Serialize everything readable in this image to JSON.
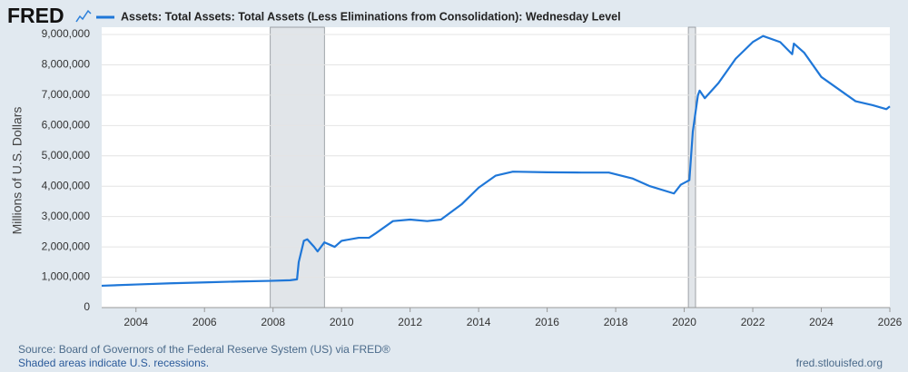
{
  "logo": "FRED",
  "chart_data": {
    "type": "line",
    "title": "Assets: Total Assets: Total Assets (Less Eliminations from Consolidation): Wednesday Level",
    "y_label": "Millions of U.S. Dollars",
    "source": "Source: Board of Governors of the Federal Reserve System (US) via FRED®",
    "note": "Shaded areas indicate U.S. recessions.",
    "url": "fred.stlouisfed.org",
    "grid": true,
    "recessions": [
      [
        2007.92,
        2009.5
      ],
      [
        2020.12,
        2020.33
      ]
    ],
    "xlim": [
      2003,
      2026
    ],
    "xticks": [
      2004,
      2006,
      2008,
      2010,
      2012,
      2014,
      2016,
      2018,
      2020,
      2022,
      2024,
      2026
    ],
    "ylim": [
      0,
      9000000
    ],
    "yticks": [
      0,
      {
        "value": 1000000,
        "label": "1,000,000"
      },
      {
        "value": 2000000,
        "label": "2,000,000"
      },
      {
        "value": 3000000,
        "label": "3,000,000"
      },
      {
        "value": 4000000,
        "label": "4,000,000"
      },
      {
        "value": 5000000,
        "label": "5,000,000"
      },
      {
        "value": 6000000,
        "label": "6,000,000"
      },
      {
        "value": 7000000,
        "label": "7,000,000"
      },
      {
        "value": 8000000,
        "label": "8,000,000"
      },
      {
        "value": 9000000,
        "label": "9,000,000"
      }
    ],
    "x": [
      2003.0,
      2004.0,
      2005.0,
      2006.0,
      2007.0,
      2007.9,
      2008.5,
      2008.7,
      2008.75,
      2008.9,
      2009.0,
      2009.2,
      2009.3,
      2009.5,
      2009.7,
      2009.8,
      2010.0,
      2010.5,
      2010.8,
      2011.0,
      2011.5,
      2012.0,
      2012.5,
      2012.9,
      2013.5,
      2014.0,
      2014.5,
      2015.0,
      2016.0,
      2017.0,
      2017.8,
      2018.5,
      2019.0,
      2019.7,
      2019.9,
      2020.1,
      2020.15,
      2020.25,
      2020.4,
      2020.45,
      2020.6,
      2021.0,
      2021.5,
      2022.0,
      2022.3,
      2022.8,
      2023.15,
      2023.2,
      2023.5,
      2024.0,
      2024.5,
      2025.0,
      2025.5,
      2025.9,
      2026.0
    ],
    "series": [
      {
        "name": "Assets: Total Assets: Total Assets (Less Eliminations from Consolidation): Wednesday Level",
        "color": "#1f77d8",
        "values": [
          720000,
          760000,
          800000,
          830000,
          860000,
          880000,
          900000,
          930000,
          1500000,
          2200000,
          2250000,
          2000000,
          1850000,
          2150000,
          2050000,
          2000000,
          2200000,
          2300000,
          2300000,
          2450000,
          2850000,
          2900000,
          2850000,
          2900000,
          3400000,
          3950000,
          4350000,
          4480000,
          4460000,
          4450000,
          4450000,
          4250000,
          4000000,
          3760000,
          4050000,
          4170000,
          4200000,
          5800000,
          7000000,
          7150000,
          6900000,
          7400000,
          8200000,
          8750000,
          8950000,
          8750000,
          8350000,
          8700000,
          8400000,
          7600000,
          7200000,
          6800000,
          6670000,
          6540000,
          6630000
        ]
      }
    ]
  }
}
